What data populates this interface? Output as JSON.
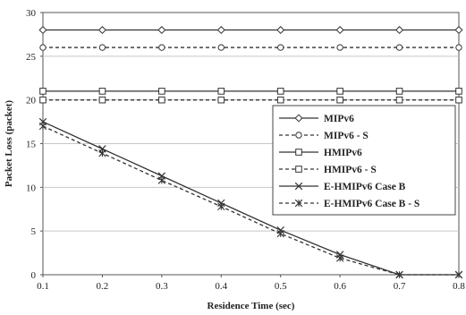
{
  "chart_data": {
    "type": "line",
    "xlabel": "Residence Time (sec)",
    "ylabel": "Packet Loss (packet)",
    "xlim": [
      0.1,
      0.8
    ],
    "ylim": [
      0,
      30
    ],
    "x_ticks": [
      "0.1",
      "0.2",
      "0.3",
      "0.4",
      "0.5",
      "0.6",
      "0.7",
      "0.8"
    ],
    "y_ticks": [
      "0",
      "5",
      "10",
      "15",
      "20",
      "25",
      "30"
    ],
    "grid": "horizontal",
    "legend_position": "right",
    "x": [
      0.1,
      0.2,
      0.3,
      0.4,
      0.5,
      0.6,
      0.7,
      0.8
    ],
    "series": [
      {
        "name": "MIPv6",
        "marker": "diamond",
        "dashed": false,
        "values": [
          28,
          28,
          28,
          28,
          28,
          28,
          28,
          28
        ]
      },
      {
        "name": "MIPv6 - S",
        "marker": "circle",
        "dashed": true,
        "values": [
          26,
          26,
          26,
          26,
          26,
          26,
          26,
          26
        ]
      },
      {
        "name": "HMIPv6",
        "marker": "square",
        "dashed": false,
        "values": [
          21,
          21,
          21,
          21,
          21,
          21,
          21,
          21
        ]
      },
      {
        "name": "HMIPv6 - S",
        "marker": "square",
        "dashed": true,
        "values": [
          20,
          20,
          20,
          20,
          20,
          20,
          20,
          20
        ]
      },
      {
        "name": "E-HMIPv6 Case B",
        "marker": "x",
        "dashed": false,
        "values": [
          17.5,
          14.4,
          11.3,
          8.2,
          5.1,
          2.3,
          0,
          0
        ]
      },
      {
        "name": "E-HMIPv6 Case B - S",
        "marker": "star",
        "dashed": true,
        "values": [
          17,
          13.9,
          10.8,
          7.8,
          4.7,
          1.9,
          0,
          0
        ]
      }
    ]
  }
}
